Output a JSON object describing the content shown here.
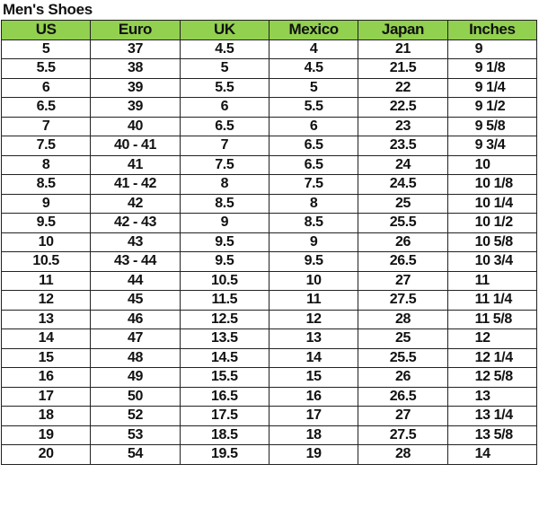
{
  "title": "Men's Shoes",
  "colors": {
    "header_bg": "#92d050",
    "border": "#222222"
  },
  "table": {
    "headers": [
      "US",
      "Euro",
      "UK",
      "Mexico",
      "Japan",
      "Inches"
    ],
    "rows": [
      [
        "5",
        "37",
        "4.5",
        "4",
        "21",
        "9"
      ],
      [
        "5.5",
        "38",
        "5",
        "4.5",
        "21.5",
        "9 1/8"
      ],
      [
        "6",
        "39",
        "5.5",
        "5",
        "22",
        "9 1/4"
      ],
      [
        "6.5",
        "39",
        "6",
        "5.5",
        "22.5",
        "9 1/2"
      ],
      [
        "7",
        "40",
        "6.5",
        "6",
        "23",
        "9 5/8"
      ],
      [
        "7.5",
        "40 - 41",
        "7",
        "6.5",
        "23.5",
        "9 3/4"
      ],
      [
        "8",
        "41",
        "7.5",
        "6.5",
        "24",
        "10"
      ],
      [
        "8.5",
        "41 - 42",
        "8",
        "7.5",
        "24.5",
        "10 1/8"
      ],
      [
        "9",
        "42",
        "8.5",
        "8",
        "25",
        "10 1/4"
      ],
      [
        "9.5",
        "42 - 43",
        "9",
        "8.5",
        "25.5",
        "10 1/2"
      ],
      [
        "10",
        "43",
        "9.5",
        "9",
        "26",
        "10 5/8"
      ],
      [
        "10.5",
        "43 - 44",
        "9.5",
        "9.5",
        "26.5",
        "10 3/4"
      ],
      [
        "11",
        "44",
        "10.5",
        "10",
        "27",
        "11"
      ],
      [
        "12",
        "45",
        "11.5",
        "11",
        "27.5",
        "11 1/4"
      ],
      [
        "13",
        "46",
        "12.5",
        "12",
        "28",
        "11 5/8"
      ],
      [
        "14",
        "47",
        "13.5",
        "13",
        "25",
        "12"
      ],
      [
        "15",
        "48",
        "14.5",
        "14",
        "25.5",
        "12 1/4"
      ],
      [
        "16",
        "49",
        "15.5",
        "15",
        "26",
        "12 5/8"
      ],
      [
        "17",
        "50",
        "16.5",
        "16",
        "26.5",
        "13"
      ],
      [
        "18",
        "52",
        "17.5",
        "17",
        "27",
        "13 1/4"
      ],
      [
        "19",
        "53",
        "18.5",
        "18",
        "27.5",
        "13 5/8"
      ],
      [
        "20",
        "54",
        "19.5",
        "19",
        "28",
        "14"
      ]
    ]
  }
}
